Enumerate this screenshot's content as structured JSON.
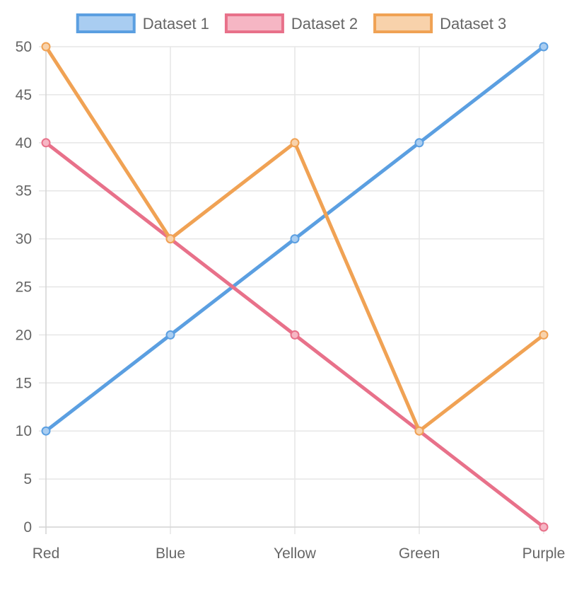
{
  "chart_data": {
    "type": "line",
    "categories": [
      "Red",
      "Blue",
      "Yellow",
      "Green",
      "Purple"
    ],
    "series": [
      {
        "name": "Dataset 1",
        "values": [
          10,
          20,
          30,
          40,
          50
        ],
        "color": "#5b9fe1",
        "fill": "#a9cdf1"
      },
      {
        "name": "Dataset 2",
        "values": [
          40,
          30,
          20,
          10,
          0
        ],
        "color": "#e8718a",
        "fill": "#f6b6c4"
      },
      {
        "name": "Dataset 3",
        "values": [
          50,
          30,
          40,
          10,
          20
        ],
        "color": "#f0a254",
        "fill": "#f8d2ab"
      }
    ],
    "ylim": [
      0,
      50
    ],
    "yticks": [
      0,
      5,
      10,
      15,
      20,
      25,
      30,
      35,
      40,
      45,
      50
    ],
    "grid": true,
    "legend_position": "top"
  }
}
